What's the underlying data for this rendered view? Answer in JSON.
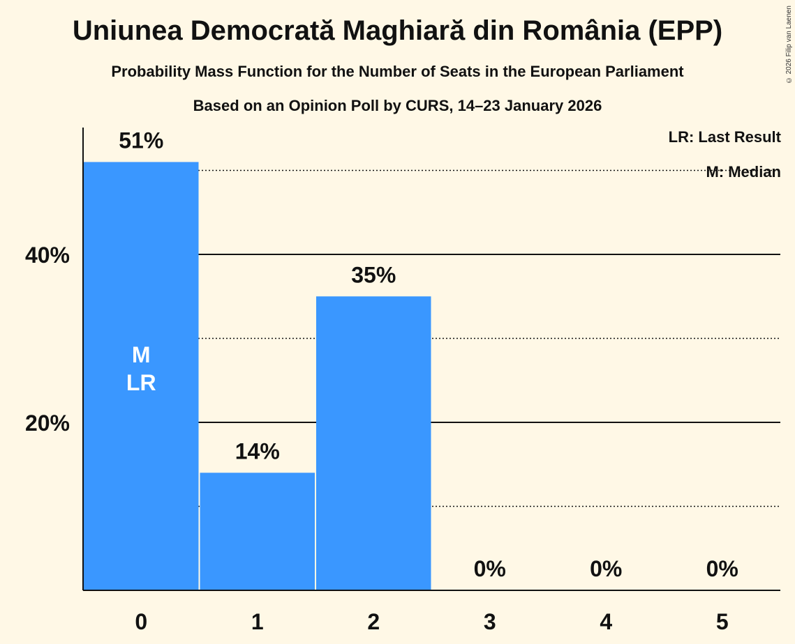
{
  "title": "Uniunea Democrată Maghiară din România (EPP)",
  "subtitle": "Probability Mass Function for the Number of Seats in the European Parliament",
  "subtitle2": "Based on an Opinion Poll by CURS, 14–23 January 2026",
  "copyright": "© 2026 Filip van Laenen",
  "legend": {
    "lr": "LR: Last Result",
    "m": "M: Median"
  },
  "colors": {
    "bar": "#3a97ff",
    "background": "#fff8e6"
  },
  "chart_data": {
    "type": "bar",
    "categories": [
      "0",
      "1",
      "2",
      "3",
      "4",
      "5"
    ],
    "values": [
      51,
      14,
      35,
      0,
      0,
      0
    ],
    "value_labels": [
      "51%",
      "14%",
      "35%",
      "0%",
      "0%",
      "0%"
    ],
    "bar_annotations": [
      "M\nLR",
      "",
      "",
      "",
      "",
      ""
    ],
    "ylim": [
      0,
      55
    ],
    "yticks": [
      20,
      40
    ],
    "ytick_labels": [
      "20%",
      "40%"
    ],
    "minor_gridlines": [
      10,
      30,
      50
    ],
    "title": "Uniunea Democrată Maghiară din România (EPP)",
    "xlabel": "",
    "ylabel": "",
    "legend_position": "top-right"
  }
}
